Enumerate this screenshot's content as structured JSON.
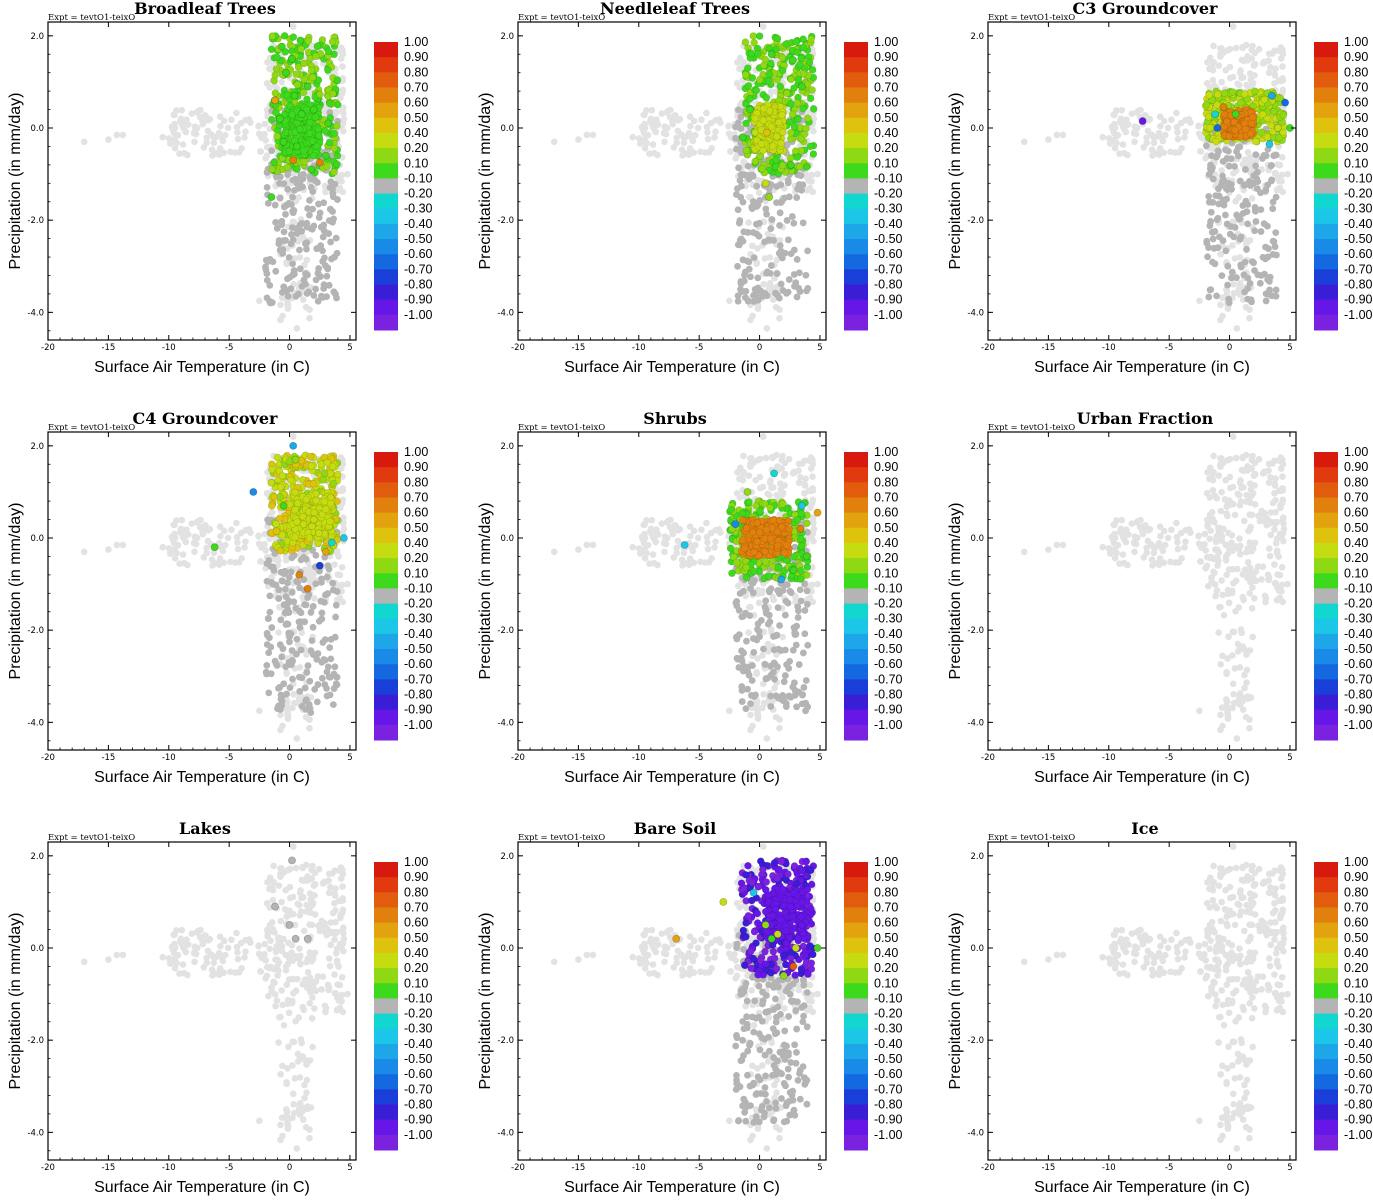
{
  "figure": {
    "expt_label": "Expt = tevtO1-teixO"
  },
  "palette": {
    "unselected_grey": "#e2e2e2",
    "neutral_grey": "#b4b4b4",
    "colorbar": [
      "#7b22e0",
      "#6716e8",
      "#3a1ed6",
      "#1a3fd8",
      "#1569e0",
      "#1a8ae8",
      "#1ea7e8",
      "#1bc6e6",
      "#12d6d0",
      "#b4b4b4",
      "#3cd91d",
      "#8ed913",
      "#c4dc10",
      "#dfc20e",
      "#e2a30e",
      "#e2800e",
      "#e25c0e",
      "#e03a0e",
      "#d81a0e"
    ]
  },
  "colorbar_labels": [
    "1.00",
    "0.90",
    "0.80",
    "0.70",
    "0.60",
    "0.50",
    "0.40",
    "0.20",
    "0.10",
    "-0.10",
    "-0.20",
    "-0.30",
    "-0.40",
    "-0.50",
    "-0.60",
    "-0.70",
    "-0.80",
    "-0.90",
    "-1.00"
  ],
  "chart_data": [
    {
      "type": "scatter",
      "title": "Broadleaf Trees",
      "xlabel": "Surface Air Temperature (in C)",
      "ylabel": "Precipitation (in mm/day)",
      "xlim": [
        -20,
        5.5
      ],
      "ylim": [
        -4.6,
        2.3
      ],
      "xticks": [
        "-20",
        "-15",
        "-10",
        "-5",
        "0",
        "5"
      ],
      "yticks": [
        "2.0",
        "0.0",
        "-2.0",
        "-4.0"
      ],
      "ytick_values": [
        2.0,
        0.0,
        -2.0,
        -4.0
      ],
      "colored": {
        "x": [
          -1.2,
          0.3,
          2.5,
          -0.5,
          1.5,
          3.2,
          0.2,
          1.0,
          -1.5,
          0.6,
          2.0,
          -0.8,
          0.9,
          1.8,
          3.0,
          -0.3,
          0.4
        ],
        "y": [
          0.6,
          -0.7,
          -0.75,
          -0.3,
          0.9,
          0.1,
          1.5,
          0.3,
          -1.5,
          -0.4,
          0.4,
          0.2,
          1.9,
          -0.9,
          -0.6,
          1.2,
          0.7
        ],
        "r": [
          0.6,
          0.75,
          0.7,
          0.15,
          0.15,
          0.15,
          0.15,
          0.15,
          0.15,
          0.15,
          0.15,
          0.15,
          0.15,
          0.15,
          0.1,
          0.15,
          0.15
        ]
      },
      "cluster": {
        "xmin": -1.5,
        "xmax": 4,
        "ymin": -1.0,
        "ymax": 2.0,
        "r": 0.15
      },
      "core": {
        "xmin": -0.5,
        "xmax": 2.5,
        "ymin": -0.6,
        "ymax": 0.5,
        "r": 0.15
      },
      "seed": 11
    },
    {
      "type": "scatter",
      "title": "Needleleaf Trees",
      "xlabel": "Surface Air Temperature (in C)",
      "ylabel": "Precipitation (in mm/day)",
      "xlim": [
        -20,
        5.5
      ],
      "ylim": [
        -4.6,
        2.3
      ],
      "xticks": [
        "-20",
        "-15",
        "-10",
        "-5",
        "0",
        "5"
      ],
      "yticks": [
        "2.0",
        "0.0",
        "-2.0",
        "-4.0"
      ],
      "ytick_values": [
        2.0,
        0.0,
        -2.0,
        -4.0
      ],
      "colored": {
        "x": [
          0.6,
          2.6,
          -1.4,
          0.8,
          1.0,
          3.5,
          -0.8,
          0.5
        ],
        "y": [
          -0.1,
          -0.8,
          -0.2,
          -1.5,
          1.6,
          0.9,
          0.4,
          -1.2
        ],
        "r": [
          0.55,
          0.15,
          0.15,
          0.3,
          0.15,
          0.15,
          0.15,
          0.35
        ]
      },
      "cluster": {
        "xmin": -1.2,
        "xmax": 4.5,
        "ymin": -1.0,
        "ymax": 2.0,
        "r": 0.15
      },
      "core": {
        "xmin": -0.5,
        "xmax": 2.0,
        "ymin": -0.5,
        "ymax": 0.5,
        "r": 0.45
      },
      "seed": 23
    },
    {
      "type": "scatter",
      "title": "C3 Groundcover",
      "xlabel": "Surface Air Temperature (in C)",
      "ylabel": "Precipitation (in mm/day)",
      "xlim": [
        -20,
        5.5
      ],
      "ylim": [
        -4.6,
        2.3
      ],
      "xticks": [
        "-20",
        "-15",
        "-10",
        "-5",
        "0",
        "5"
      ],
      "yticks": [
        "2.0",
        "0.0",
        "-2.0",
        "-4.0"
      ],
      "ytick_values": [
        2.0,
        0.0,
        -2.0,
        -4.0
      ],
      "colored": {
        "x": [
          -7.2,
          3.5,
          4.6,
          -1.2,
          5.0,
          3.3,
          -0.5,
          4.0,
          -1.0,
          0.5
        ],
        "y": [
          0.15,
          0.7,
          0.55,
          0.3,
          0.0,
          -0.35,
          0.45,
          0.0,
          0.0,
          0.3
        ],
        "r": [
          -0.85,
          -0.4,
          -0.55,
          -0.2,
          0.15,
          -0.3,
          0.75,
          0.4,
          -0.6,
          0.15
        ]
      },
      "cluster": {
        "xmin": -2.0,
        "xmax": 4.5,
        "ymin": -0.3,
        "ymax": 0.8,
        "r": 0.3
      },
      "core": {
        "xmin": -0.5,
        "xmax": 2.0,
        "ymin": -0.2,
        "ymax": 0.4,
        "r": 0.75
      },
      "seed": 37
    },
    {
      "type": "scatter",
      "title": "C4 Groundcover",
      "xlabel": "Surface Air Temperature (in C)",
      "ylabel": "Precipitation (in mm/day)",
      "xlim": [
        -20,
        5.5
      ],
      "ylim": [
        -4.6,
        2.3
      ],
      "xticks": [
        "-20",
        "-15",
        "-10",
        "-5",
        "0",
        "5"
      ],
      "yticks": [
        "2.0",
        "0.0",
        "-2.0",
        "-4.0"
      ],
      "ytick_values": [
        2.0,
        0.0,
        -2.0,
        -4.0
      ],
      "colored": {
        "x": [
          -6.2,
          4.5,
          3.5,
          -3.0,
          0.3,
          0.5,
          -1.5,
          2.5,
          0.8,
          3.0,
          -0.5,
          1.5,
          2.0
        ],
        "y": [
          -0.2,
          0.0,
          -0.1,
          1.0,
          2.0,
          1.7,
          1.2,
          -0.6,
          -0.8,
          -0.3,
          0.7,
          -1.1,
          0.4
        ],
        "r": [
          0.15,
          -0.3,
          -0.2,
          -0.45,
          -0.4,
          0.3,
          0.4,
          -0.7,
          0.75,
          0.6,
          0.15,
          0.7,
          0.4
        ]
      },
      "cluster": {
        "xmin": -1.5,
        "xmax": 4.0,
        "ymin": -0.3,
        "ymax": 1.8,
        "r": 0.4
      },
      "core": {
        "xmin": 0.0,
        "xmax": 3.5,
        "ymin": 0.0,
        "ymax": 1.0,
        "r": 0.4
      },
      "seed": 41
    },
    {
      "type": "scatter",
      "title": "Shrubs",
      "xlabel": "Surface Air Temperature (in C)",
      "ylabel": "Precipitation (in mm/day)",
      "xlim": [
        -20,
        5.5
      ],
      "ylim": [
        -4.6,
        2.3
      ],
      "xticks": [
        "-20",
        "-15",
        "-10",
        "-5",
        "0",
        "5"
      ],
      "yticks": [
        "2.0",
        "0.0",
        "-2.0",
        "-4.0"
      ],
      "ytick_values": [
        2.0,
        0.0,
        -2.0,
        -4.0
      ],
      "colored": {
        "x": [
          -6.2,
          4.8,
          3.5,
          3.9,
          1.2,
          -1.0,
          2.8,
          -2.0,
          3.4,
          1.8
        ],
        "y": [
          -0.15,
          0.55,
          0.7,
          -0.4,
          1.4,
          1.0,
          -0.7,
          0.3,
          0.2,
          -0.9
        ],
        "r": [
          -0.25,
          0.6,
          -0.3,
          0.15,
          -0.2,
          0.3,
          0.15,
          -0.5,
          0.75,
          -0.35
        ]
      },
      "cluster": {
        "xmin": -2.5,
        "xmax": 4.0,
        "ymin": -0.9,
        "ymax": 0.8,
        "r": 0.15
      },
      "core": {
        "xmin": -1.5,
        "xmax": 2.5,
        "ymin": -0.4,
        "ymax": 0.4,
        "r": 0.75
      },
      "seed": 53
    },
    {
      "type": "scatter",
      "title": "Urban Fraction",
      "xlabel": "Surface Air Temperature (in C)",
      "ylabel": "Precipitation (in mm/day)",
      "xlim": [
        -20,
        5.5
      ],
      "ylim": [
        -4.6,
        2.3
      ],
      "xticks": [
        "-20",
        "-15",
        "-10",
        "-5",
        "0",
        "5"
      ],
      "yticks": [
        "2.0",
        "0.0",
        "-2.0",
        "-4.0"
      ],
      "ytick_values": [
        2.0,
        0.0,
        -2.0,
        -4.0
      ],
      "colored": {
        "x": [],
        "y": [],
        "r": []
      },
      "cluster": null,
      "core": null,
      "seed": 61
    },
    {
      "type": "scatter",
      "title": "Lakes",
      "xlabel": "Surface Air Temperature (in C)",
      "ylabel": "Precipitation (in mm/day)",
      "xlim": [
        -20,
        5.5
      ],
      "ylim": [
        -4.6,
        2.3
      ],
      "xticks": [
        "-20",
        "-15",
        "-10",
        "-5",
        "0",
        "5"
      ],
      "yticks": [
        "2.0",
        "0.0",
        "-2.0",
        "-4.0"
      ],
      "ytick_values": [
        2.0,
        0.0,
        -2.0,
        -4.0
      ],
      "colored": {
        "x": [
          0.2,
          -1.2,
          0.0,
          0.5,
          1.5
        ],
        "y": [
          1.9,
          0.9,
          0.5,
          0.2,
          0.2
        ],
        "r": [
          0.0,
          0.0,
          0.0,
          0.0,
          0.0
        ]
      },
      "cluster": null,
      "core": null,
      "seed": 71
    },
    {
      "type": "scatter",
      "title": "Bare Soil",
      "xlabel": "Surface Air Temperature (in C)",
      "ylabel": "Precipitation (in mm/day)",
      "xlim": [
        -20,
        5.5
      ],
      "ylim": [
        -4.6,
        2.3
      ],
      "xticks": [
        "-20",
        "-15",
        "-10",
        "-5",
        "0",
        "5"
      ],
      "yticks": [
        "2.0",
        "0.0",
        "-2.0",
        "-4.0"
      ],
      "ytick_values": [
        2.0,
        0.0,
        -2.0,
        -4.0
      ],
      "colored": {
        "x": [
          -6.9,
          4.8,
          2.8,
          2.0,
          1.5,
          3.5,
          -3.0,
          0.5,
          1.0,
          2.2,
          3.0,
          -0.5
        ],
        "y": [
          0.2,
          0.0,
          -0.4,
          -0.6,
          0.3,
          0.5,
          1.0,
          0.5,
          0.2,
          0.1,
          0.0,
          1.2
        ],
        "r": [
          0.6,
          0.15,
          0.8,
          0.3,
          0.4,
          -0.9,
          0.4,
          0.3,
          0.15,
          -0.85,
          0.4,
          -0.3
        ]
      },
      "cluster": {
        "xmin": -1.5,
        "xmax": 4.5,
        "ymin": -0.6,
        "ymax": 1.9,
        "r": -0.9
      },
      "core": {
        "xmin": 0.5,
        "xmax": 4.0,
        "ymin": 0.2,
        "ymax": 1.3,
        "r": -0.9
      },
      "seed": 83
    },
    {
      "type": "scatter",
      "title": "Ice",
      "xlabel": "Surface Air Temperature (in C)",
      "ylabel": "Precipitation (in mm/day)",
      "xlim": [
        -20,
        5.5
      ],
      "ylim": [
        -4.6,
        2.3
      ],
      "xticks": [
        "-20",
        "-15",
        "-10",
        "-5",
        "0",
        "5"
      ],
      "yticks": [
        "2.0",
        "0.0",
        "-2.0",
        "-4.0"
      ],
      "ytick_values": [
        2.0,
        0.0,
        -2.0,
        -4.0
      ],
      "colored": {
        "x": [],
        "y": [],
        "r": []
      },
      "cluster": null,
      "core": null,
      "seed": 97
    }
  ]
}
